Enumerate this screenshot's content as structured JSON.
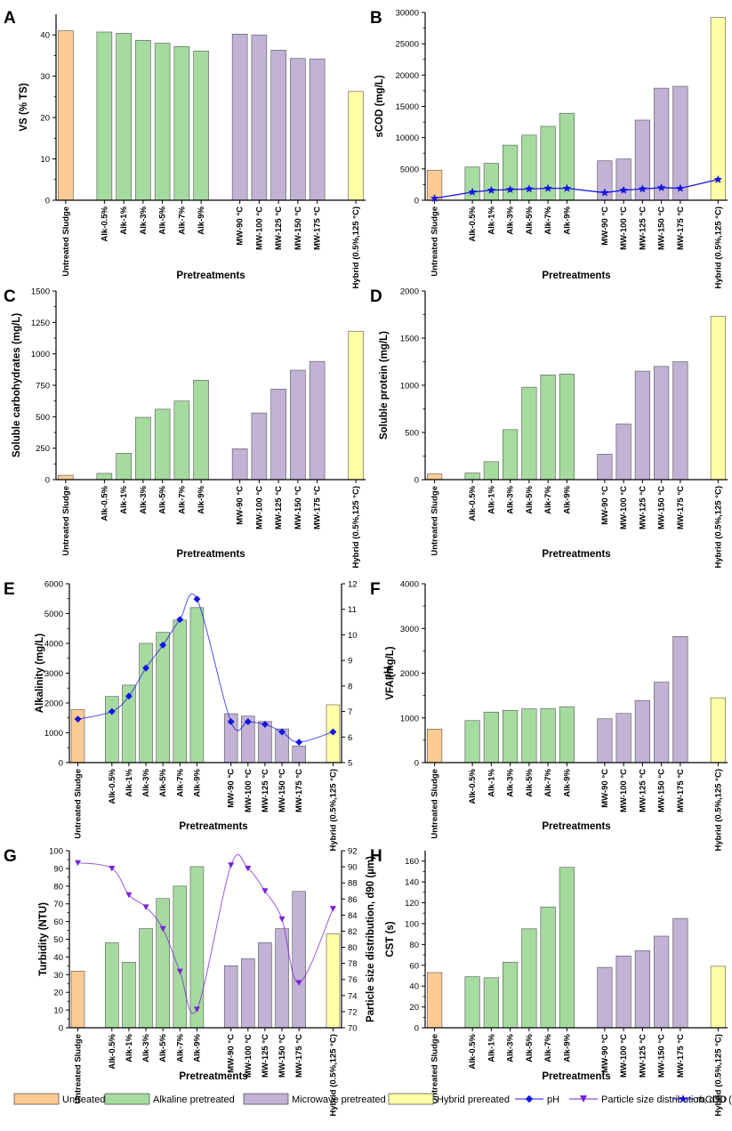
{
  "colors": {
    "untreated": "#FBCB94",
    "alkaline": "#A6DBA0",
    "microwave": "#C2B2D6",
    "hybrid": "#FFFFA8",
    "ph": "#1515E0",
    "psd": "#7A1FD8",
    "rbcod": "#1515E0"
  },
  "categories": [
    "Untreated Sludge",
    "Alk-0.5%",
    "Alk-1%",
    "Alk-3%",
    "Alk-5%",
    "Alk-7%",
    "Alk-9%",
    "MW-90 °C",
    "MW-100 °C",
    "MW-125 °C",
    "MW-150 °C",
    "MW-175 °C",
    "Hybrid (0.5%,125 °C)"
  ],
  "groups": [
    "untreated",
    "alkaline",
    "alkaline",
    "alkaline",
    "alkaline",
    "alkaline",
    "alkaline",
    "microwave",
    "microwave",
    "microwave",
    "microwave",
    "microwave",
    "hybrid"
  ],
  "legend": {
    "untreated": "Untreated",
    "alkaline": "Alkaline pretreated",
    "microwave": "Microwave pretreated",
    "hybrid": "Hybrid prereated",
    "ph": "pH",
    "psd": "Particle size distribution, d90 (µm)",
    "rbcod": "rbCOD"
  },
  "chart_data": [
    {
      "id": "A",
      "type": "bar",
      "panel_label": "A",
      "xlabel": "Pretreatments",
      "ylabel": "VS (% TS)",
      "ylim": [
        0,
        45
      ],
      "yticks": [
        0,
        10,
        20,
        30,
        40
      ],
      "values": [
        41,
        40.7,
        40.4,
        38.7,
        38,
        37.2,
        36.1,
        40.2,
        40,
        36.3,
        34.3,
        34.2,
        26.3
      ]
    },
    {
      "id": "B",
      "type": "bar",
      "panel_label": "B",
      "xlabel": "Pretreatments",
      "ylabel": "sCOD (mg/L)",
      "ylim": [
        0,
        30000
      ],
      "yticks": [
        0,
        5000,
        10000,
        15000,
        20000,
        25000,
        30000
      ],
      "values": [
        4800,
        5300,
        5900,
        8800,
        10400,
        11800,
        13900,
        6300,
        6600,
        12800,
        17900,
        18200,
        29200
      ],
      "line": {
        "name": "rbCOD",
        "values": [
          300,
          1300,
          1600,
          1700,
          1800,
          1900,
          1900,
          1200,
          1600,
          1800,
          2000,
          1900,
          3300
        ]
      }
    },
    {
      "id": "C",
      "type": "bar",
      "panel_label": "C",
      "xlabel": "Pretreatments",
      "ylabel": "Soluble carbohydrates (mg/L)",
      "ylim": [
        0,
        1500
      ],
      "yticks": [
        0,
        250,
        500,
        750,
        1000,
        1250,
        1500
      ],
      "values": [
        35,
        50,
        210,
        495,
        560,
        625,
        790,
        245,
        530,
        720,
        870,
        940,
        1180
      ]
    },
    {
      "id": "D",
      "type": "bar",
      "panel_label": "D",
      "xlabel": "Pretreatments",
      "ylabel": "Soluble protein (mg/L)",
      "ylim": [
        0,
        2000
      ],
      "yticks": [
        0,
        500,
        1000,
        1500,
        2000
      ],
      "values": [
        60,
        70,
        190,
        530,
        980,
        1110,
        1120,
        270,
        590,
        1150,
        1200,
        1250,
        1730
      ]
    },
    {
      "id": "E",
      "type": "bar",
      "panel_label": "E",
      "xlabel": "Pretreatments",
      "ylabel": "Alkalinity (mg/L)",
      "y2label": "pH",
      "ylim": [
        0,
        6000
      ],
      "yticks": [
        0,
        1000,
        2000,
        3000,
        4000,
        5000,
        6000
      ],
      "y2lim": [
        5,
        12
      ],
      "y2ticks": [
        5,
        6,
        7,
        8,
        9,
        10,
        11,
        12
      ],
      "values": [
        1780,
        2220,
        2600,
        4000,
        4370,
        4780,
        5200,
        1640,
        1560,
        1380,
        1130,
        560,
        1940
      ],
      "line": {
        "name": "pH",
        "values": [
          6.7,
          7.0,
          7.6,
          8.7,
          9.6,
          10.6,
          11.4,
          6.6,
          6.6,
          6.5,
          6.2,
          5.8,
          6.2
        ]
      }
    },
    {
      "id": "F",
      "type": "bar",
      "panel_label": "F",
      "xlabel": "Pretreatments",
      "ylabel": "VFA (mg/L)",
      "ylim": [
        0,
        4000
      ],
      "yticks": [
        0,
        1000,
        2000,
        3000,
        4000
      ],
      "values": [
        750,
        940,
        1130,
        1170,
        1200,
        1210,
        1250,
        980,
        1100,
        1390,
        1800,
        2820,
        1450
      ]
    },
    {
      "id": "G",
      "type": "bar",
      "panel_label": "G",
      "xlabel": "Pretreatments",
      "ylabel": "Turbidity (NTU)",
      "y2label": "Particle size distribution, d90 (µm)",
      "ylim": [
        0,
        100
      ],
      "yticks": [
        0,
        10,
        20,
        30,
        40,
        50,
        60,
        70,
        80,
        90,
        100
      ],
      "y2lim": [
        70,
        92
      ],
      "y2ticks": [
        70,
        72,
        74,
        76,
        78,
        80,
        82,
        84,
        86,
        88,
        90,
        92
      ],
      "values": [
        32,
        48,
        37,
        56,
        73,
        80,
        91,
        35,
        39,
        48,
        56,
        77,
        53
      ],
      "line": {
        "name": "Particle size distribution, d90 (µm)",
        "values": [
          90.5,
          89.8,
          86.5,
          85,
          82.3,
          77,
          72.3,
          90.2,
          89.8,
          87,
          83.5,
          75.6,
          84.8
        ]
      }
    },
    {
      "id": "H",
      "type": "bar",
      "panel_label": "H",
      "xlabel": "Pretreatments",
      "ylabel": "CST (s)",
      "ylim": [
        0,
        170
      ],
      "yticks": [
        0,
        20,
        40,
        60,
        80,
        100,
        120,
        140,
        160
      ],
      "values": [
        53,
        49,
        48,
        63,
        95,
        116,
        154,
        58,
        69,
        74,
        88,
        105,
        59
      ]
    }
  ]
}
